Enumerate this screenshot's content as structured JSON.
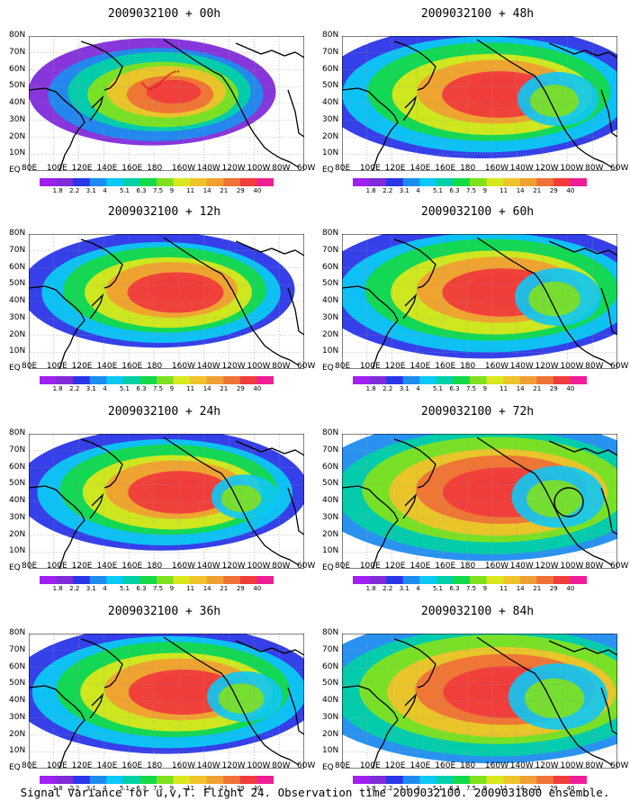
{
  "panels": [
    {
      "title": "2009032100 + 00h",
      "spread": 0.45
    },
    {
      "title": "2009032100 + 48h",
      "spread": 0.75
    },
    {
      "title": "2009032100 + 12h",
      "spread": 0.55
    },
    {
      "title": "2009032100 + 60h",
      "spread": 0.8
    },
    {
      "title": "2009032100 + 24h",
      "spread": 0.62
    },
    {
      "title": "2009032100 + 72h",
      "spread": 0.86
    },
    {
      "title": "2009032100 + 36h",
      "spread": 0.7
    },
    {
      "title": "2009032100 + 84h",
      "spread": 0.92
    }
  ],
  "lat_labels": [
    "80N",
    "70N",
    "60N",
    "50N",
    "40N",
    "30N",
    "20N",
    "10N",
    "EQ"
  ],
  "lon_labels": [
    "80E",
    "100E",
    "120E",
    "140E",
    "160E",
    "180",
    "160W",
    "140W",
    "120W",
    "100W",
    "80W",
    "60W"
  ],
  "colorbar": {
    "labels": [
      "1.8",
      "2.2",
      "3.1",
      "4",
      "5.1",
      "6.3",
      "7.5",
      "9",
      "11",
      "14",
      "21",
      "29",
      "40"
    ],
    "colors": [
      "#a020f0",
      "#7f2bd8",
      "#2a36e8",
      "#1d8cf0",
      "#0cc8f5",
      "#00d0a8",
      "#14d94a",
      "#7fe11e",
      "#d8e81c",
      "#efc32a",
      "#f0a032",
      "#ef7236",
      "#f03c3c",
      "#f01e96"
    ]
  },
  "caption": "Signal Variance for u,v,T. Flight 24. Observation time 2009032100. 2009031800 ensemble."
}
